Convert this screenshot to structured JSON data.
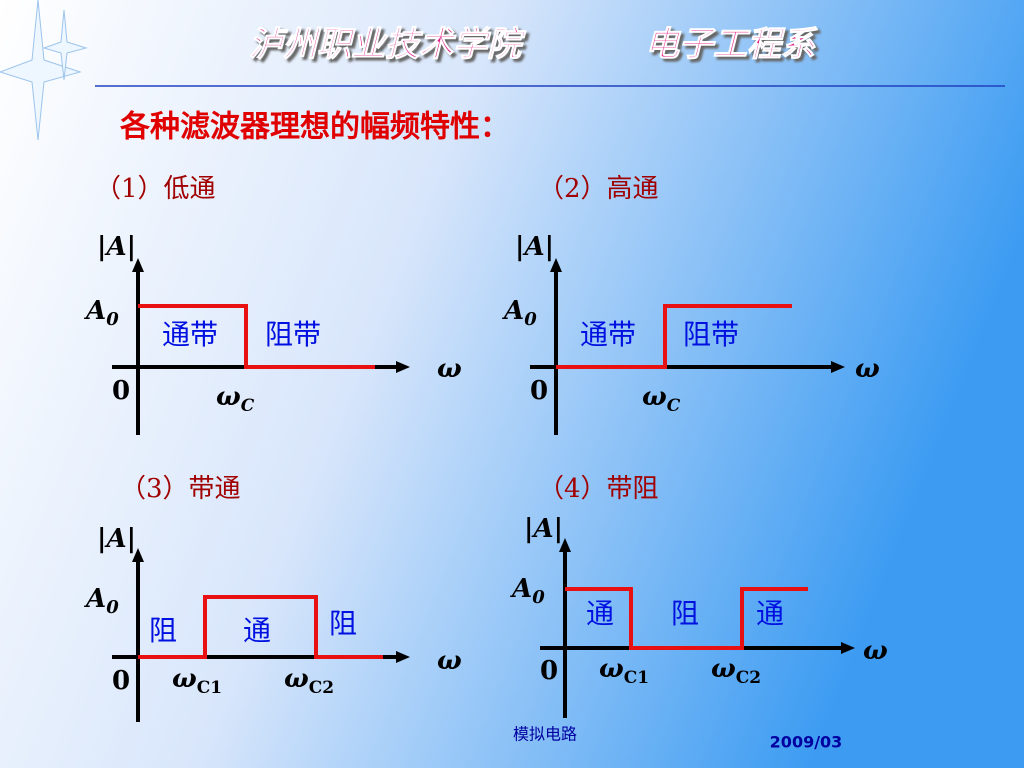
{
  "header": {
    "school": "泸州职业技术学院",
    "department": "电子工程系"
  },
  "heading": "各种滤波器理想的幅频特性：",
  "panels": [
    {
      "title": "（1）低通",
      "y_label": "|A|",
      "level": {
        "base": "A",
        "sub": "0"
      },
      "origin": "0",
      "x_label": "ω",
      "cutoffs": [
        {
          "base": "ω",
          "sub": "C"
        }
      ],
      "regions": [
        "通带",
        "阻带"
      ]
    },
    {
      "title": "（2）高通",
      "y_label": "|A|",
      "level": {
        "base": "A",
        "sub": "0"
      },
      "origin": "0",
      "x_label": "ω",
      "cutoffs": [
        {
          "base": "ω",
          "sub": "C"
        }
      ],
      "regions": [
        "通带",
        "阻带"
      ]
    },
    {
      "title": "（3）带通",
      "y_label": "|A|",
      "level": {
        "base": "A",
        "sub": "0"
      },
      "origin": "0",
      "x_label": "ω",
      "cutoffs": [
        {
          "base": "ω",
          "sub": "C1"
        },
        {
          "base": "ω",
          "sub": "C2"
        }
      ],
      "regions": [
        "阻",
        "通",
        "阻"
      ]
    },
    {
      "title": "（4）带阻",
      "y_label": "|A|",
      "level": {
        "base": "A",
        "sub": "0"
      },
      "origin": "0",
      "x_label": "ω",
      "cutoffs": [
        {
          "base": "ω",
          "sub": "C1"
        },
        {
          "base": "ω",
          "sub": "C2"
        }
      ],
      "regions": [
        "通",
        "阻",
        "通"
      ]
    }
  ],
  "footer": {
    "course": "模拟电路",
    "date": "2009/03"
  }
}
